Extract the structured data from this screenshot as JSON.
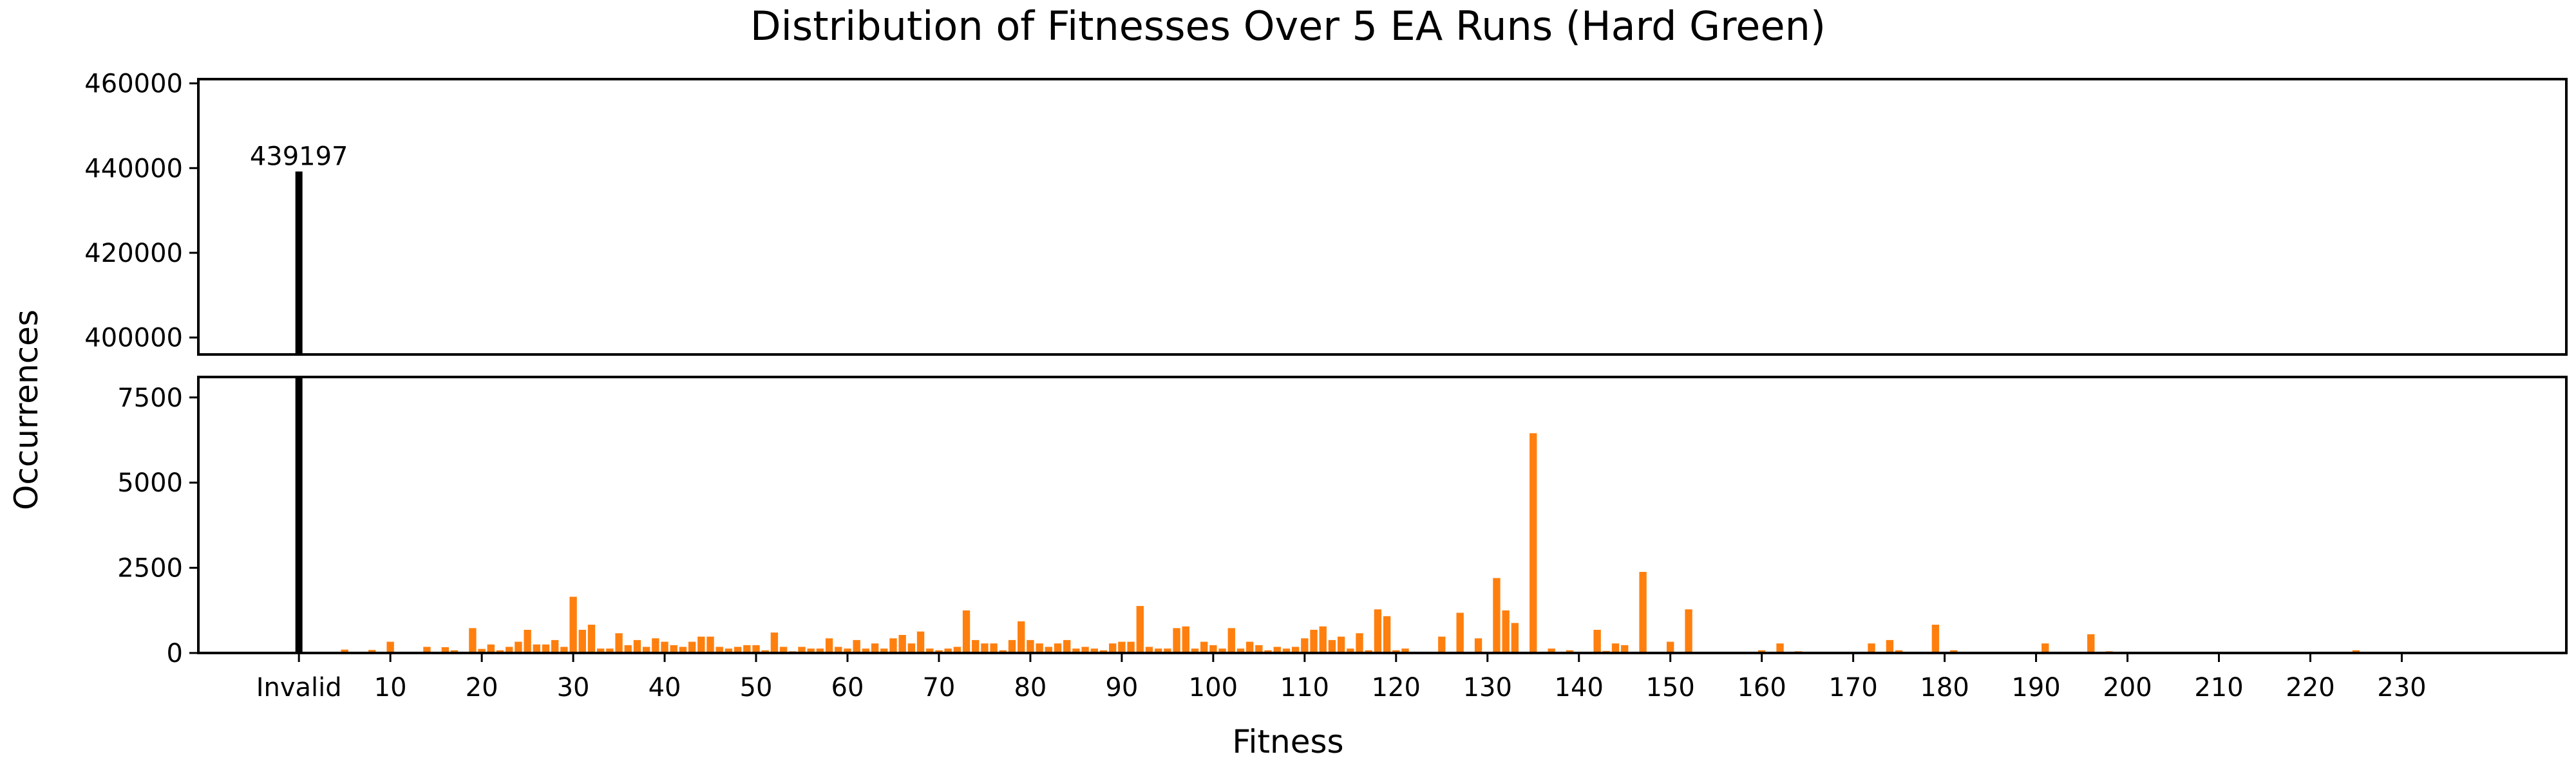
{
  "chart_data": {
    "type": "bar",
    "title": "Distribution of Fitnesses Over 5 EA Runs (Hard Green)",
    "xlabel": "Fitness",
    "ylabel": "Occurrences",
    "broken_y_axis": true,
    "grid": false,
    "x_tick_labels": [
      "Invalid",
      "10",
      "20",
      "30",
      "40",
      "50",
      "60",
      "70",
      "80",
      "90",
      "100",
      "110",
      "120",
      "130",
      "140",
      "150",
      "160",
      "170",
      "180",
      "190",
      "200",
      "210",
      "220",
      "230"
    ],
    "x_tick_values": [
      "Invalid",
      10,
      20,
      30,
      40,
      50,
      60,
      70,
      80,
      90,
      100,
      110,
      120,
      130,
      140,
      150,
      160,
      170,
      180,
      190,
      200,
      210,
      220,
      230
    ],
    "xlim": [
      -11,
      248
    ],
    "top_panel": {
      "ylim": [
        396000,
        461000
      ],
      "yticks": [
        "400000",
        "420000",
        "440000",
        "460000"
      ],
      "ytick_values": [
        400000,
        420000,
        440000,
        460000
      ]
    },
    "bottom_panel": {
      "ylim": [
        0,
        8100
      ],
      "yticks": [
        "0",
        "2500",
        "5000",
        "7500"
      ],
      "ytick_values": [
        0,
        2500,
        5000,
        7500
      ]
    },
    "invalid_bar": {
      "label": "Invalid",
      "value": 439197,
      "value_label": "439197",
      "color": "#000000"
    },
    "bar_color": "#ff7f0e",
    "series": [
      {
        "x": [
          5,
          8,
          10,
          13,
          14,
          16,
          17,
          19,
          20,
          21,
          22,
          23,
          24,
          25,
          26,
          27,
          28,
          29,
          30,
          31,
          32,
          33,
          34,
          35,
          36,
          37,
          38,
          39,
          40,
          41,
          42,
          43,
          44,
          45,
          46,
          47,
          48,
          49,
          50,
          51,
          52,
          53,
          54,
          55,
          56,
          57,
          58,
          59,
          60,
          61,
          62,
          63,
          64,
          65,
          66,
          67,
          68,
          69,
          70,
          71,
          72,
          73,
          74,
          75,
          76,
          77,
          78,
          79,
          80,
          81,
          82,
          83,
          84,
          85,
          86,
          87,
          88,
          89,
          90,
          91,
          92,
          93,
          94,
          95,
          96,
          97,
          98,
          99,
          100,
          101,
          102,
          103,
          104,
          105,
          106,
          107,
          108,
          109,
          110,
          111,
          112,
          113,
          114,
          115,
          116,
          117,
          118,
          119,
          120,
          121,
          125,
          127,
          129,
          131,
          132,
          133,
          135,
          137,
          139,
          142,
          143,
          144,
          145,
          147,
          150,
          152,
          155,
          160,
          162,
          164,
          169,
          172,
          174,
          175,
          179,
          181,
          186,
          191,
          196,
          198,
          215,
          225
        ],
        "values": [
          100,
          90,
          330,
          30,
          180,
          170,
          80,
          730,
          120,
          250,
          80,
          180,
          330,
          680,
          250,
          250,
          380,
          180,
          1650,
          680,
          830,
          130,
          130,
          580,
          230,
          380,
          180,
          430,
          330,
          230,
          180,
          330,
          480,
          480,
          180,
          130,
          180,
          230,
          230,
          80,
          600,
          180,
          50,
          180,
          130,
          130,
          430,
          180,
          130,
          380,
          130,
          280,
          130,
          430,
          530,
          280,
          630,
          130,
          80,
          130,
          180,
          1250,
          380,
          280,
          280,
          80,
          380,
          930,
          380,
          280,
          180,
          280,
          380,
          130,
          180,
          130,
          80,
          280,
          330,
          330,
          1380,
          180,
          130,
          130,
          730,
          780,
          130,
          330,
          230,
          130,
          730,
          130,
          330,
          230,
          80,
          180,
          130,
          180,
          430,
          680,
          780,
          380,
          480,
          130,
          580,
          80,
          1280,
          1080,
          80,
          130,
          480,
          1180,
          430,
          2200,
          1250,
          880,
          6450,
          130,
          80,
          680,
          60,
          280,
          230,
          2380,
          330,
          1280,
          30,
          80,
          280,
          50,
          30,
          280,
          380,
          80,
          830,
          80,
          30,
          280,
          550,
          50,
          30,
          80
        ]
      }
    ]
  }
}
